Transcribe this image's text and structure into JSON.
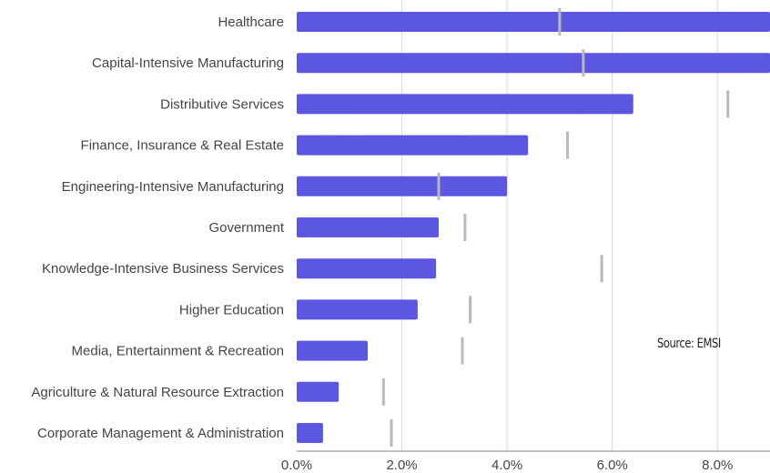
{
  "chart_data": {
    "type": "bar",
    "orientation": "horizontal",
    "categories": [
      "Healthcare",
      "Capital-Intensive Manufacturing",
      "Distributive Services",
      "Finance, Insurance & Real Estate",
      "Engineering-Intensive Manufacturing",
      "Government",
      "Knowledge-Intensive Business Services",
      "Higher Education",
      "Media, Entertainment & Recreation",
      "Agriculture & Natural Resource Extraction",
      "Corporate Management & Administration"
    ],
    "series": [
      {
        "values": [
          9.0,
          9.0,
          6.4,
          4.4,
          4.0,
          2.7,
          2.65,
          2.3,
          1.35,
          0.8,
          0.5
        ]
      },
      {
        "values": [
          5.0,
          5.45,
          8.2,
          5.15,
          2.7,
          3.2,
          5.8,
          3.3,
          3.15,
          1.65,
          1.8
        ]
      }
    ],
    "xlim": [
      0,
      9
    ],
    "x_ticks": [
      "0.0%",
      "2.0%",
      "4.0%",
      "6.0%",
      "8.0%"
    ],
    "grid": true,
    "colors": {
      "bar": "#5b57e0",
      "marker": "#b9b9b9",
      "grid": "#d9d9d9",
      "axis": "#888888"
    }
  },
  "source_note": "Source: EMSI"
}
